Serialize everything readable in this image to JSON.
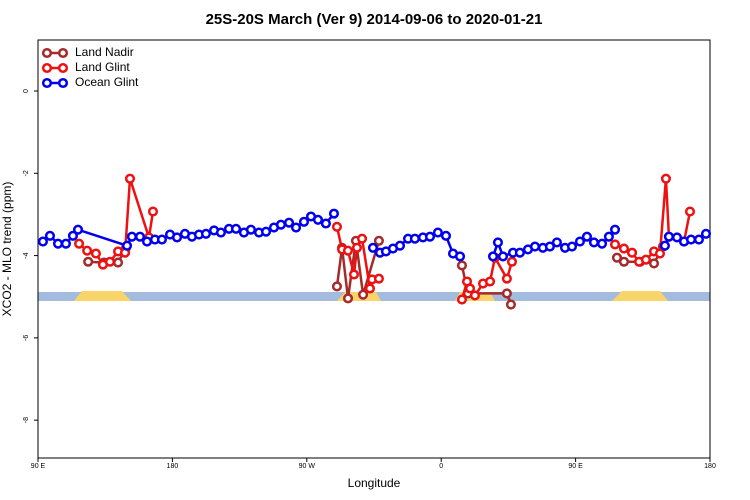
{
  "chart_data": {
    "type": "line",
    "title": "25S-20S March (Ver 9)   2014-09-06 to 2020-01-21",
    "xlabel": "Longitude",
    "ylabel": "XCO2 - MLO trend (ppm)",
    "xlim": [
      90,
      540
    ],
    "ylim": [
      -8.92,
      1.24
    ],
    "xticks": [
      {
        "value": 90,
        "label": "90 E"
      },
      180,
      {
        "value": 270,
        "label": "90 W"
      },
      {
        "value": 360,
        "label": "0"
      },
      {
        "value": 450,
        "label": "90 E"
      },
      {
        "value": 540,
        "label": "180"
      }
    ],
    "yticks": [
      0,
      -2,
      -4,
      -6,
      -8
    ],
    "legend": "top-left",
    "series": [
      {
        "name": "Land Nadir",
        "color": "#a52a2a",
        "x": [
          123.6,
          134.2,
          143.6,
          149.0,
          null,
          290.2,
          293.6,
          297.6,
          302.9,
          307.7,
          318.3,
          null,
          373.9,
          377.9,
          404.0,
          406.7,
          null,
          477.7,
          482.4,
          493.2,
          502.5,
          508.5
        ],
        "values": [
          -4.15,
          -4.17,
          -4.17,
          -3.81,
          null,
          -4.75,
          -3.81,
          -5.04,
          -3.64,
          -4.95,
          -3.64,
          null,
          -4.24,
          -4.92,
          -4.92,
          -5.19,
          null,
          -4.05,
          -4.15,
          -4.15,
          -4.19,
          -3.78
        ]
      },
      {
        "name": "Land Glint",
        "color": "#ee1111",
        "x": [
          117.5,
          122.9,
          128.8,
          133.5,
          138.2,
          143.6,
          148.3,
          151.6,
          164.3,
          167.0,
          null,
          290.2,
          293.6,
          297.6,
          301.6,
          303.6,
          307.0,
          312.3,
          313.7,
          318.3,
          null,
          373.9,
          377.3,
          379.3,
          382.6,
          388.0,
          392.7,
          396.0,
          404.0,
          407.4,
          null,
          476.4,
          482.4,
          487.8,
          492.5,
          497.1,
          502.5,
          506.5,
          510.5,
          512.5,
          null,
          522.6,
          526.6
        ],
        "values": [
          -3.71,
          -3.88,
          -3.95,
          -4.22,
          -4.15,
          -3.9,
          -3.93,
          -2.13,
          -3.56,
          -2.93,
          null,
          -3.3,
          -3.85,
          -3.88,
          -4.46,
          -3.81,
          -3.59,
          -4.8,
          -4.58,
          -4.56,
          null,
          -5.07,
          -4.63,
          -4.8,
          -4.97,
          -4.68,
          -4.63,
          -4.05,
          -4.56,
          -4.15,
          null,
          -3.73,
          -3.83,
          -3.93,
          -4.15,
          -4.1,
          -3.9,
          -3.95,
          -2.13,
          -3.54,
          null,
          -3.66,
          -2.93
        ]
      },
      {
        "name": "Ocean Glint",
        "color": "#0000ee",
        "x": [
          93.3,
          98.0,
          103.4,
          108.7,
          113.4,
          116.8,
          149.6,
          152.9,
          158.3,
          163.0,
          168.3,
          173.0,
          178.4,
          183.1,
          188.4,
          193.1,
          197.8,
          202.5,
          207.9,
          212.5,
          217.9,
          222.6,
          227.9,
          232.6,
          238.0,
          242.7,
          248.0,
          252.7,
          258.1,
          262.8,
          268.1,
          272.8,
          277.5,
          282.8,
          288.2,
          null,
          314.3,
          319.0,
          323.0,
          327.7,
          332.4,
          337.8,
          342.4,
          347.8,
          352.5,
          357.8,
          363.2,
          367.9,
          372.6,
          null,
          394.7,
          398.0,
          401.4,
          408.1,
          412.7,
          418.1,
          422.8,
          428.1,
          432.8,
          437.5,
          442.9,
          447.6,
          452.9,
          457.6,
          462.3,
          467.7,
          472.3,
          476.4,
          null,
          509.8,
          512.5,
          517.9,
          522.6,
          527.3,
          532.6,
          537.3
        ],
        "values": [
          -3.66,
          -3.52,
          -3.71,
          -3.71,
          -3.52,
          -3.37,
          -3.76,
          -3.54,
          -3.54,
          -3.66,
          -3.61,
          -3.61,
          -3.49,
          -3.56,
          -3.47,
          -3.54,
          -3.49,
          -3.47,
          -3.39,
          -3.44,
          -3.35,
          -3.35,
          -3.44,
          -3.37,
          -3.44,
          -3.42,
          -3.32,
          -3.25,
          -3.2,
          -3.32,
          -3.18,
          -3.05,
          -3.13,
          -3.22,
          -2.98,
          null,
          -3.81,
          -3.93,
          -3.9,
          -3.83,
          -3.76,
          -3.59,
          -3.59,
          -3.56,
          -3.54,
          -3.44,
          -3.52,
          -3.95,
          -4.02,
          null,
          -4.02,
          -3.68,
          -4.02,
          -3.93,
          -3.93,
          -3.85,
          -3.78,
          -3.81,
          -3.78,
          -3.68,
          -3.81,
          -3.78,
          -3.66,
          -3.54,
          -3.68,
          -3.71,
          -3.54,
          -3.37,
          null,
          -3.76,
          -3.54,
          -3.56,
          -3.66,
          -3.61,
          -3.61,
          -3.47
        ]
      }
    ]
  }
}
